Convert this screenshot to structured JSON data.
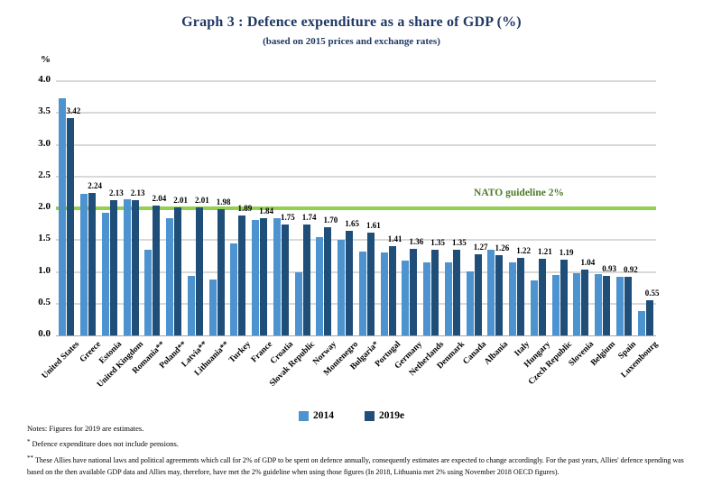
{
  "chart_data": {
    "type": "bar",
    "title": "Graph 3 : Defence expenditure as a share of GDP (%)",
    "subtitle": "(based on 2015 prices and exchange rates)",
    "ylabel": "%",
    "ylim": [
      0,
      4.0
    ],
    "yticks": [
      "4.0",
      "3.5",
      "3.0",
      "2.5",
      "2.0",
      "1.5",
      "1.0",
      "0.5",
      "0.0"
    ],
    "grid": true,
    "legend_position": "bottom",
    "categories": [
      "United States",
      "Greece",
      "Estonia",
      "United Kingdom",
      "Romania**",
      "Poland**",
      "Latvia**",
      "Lithuania**",
      "Turkey",
      "France",
      "Croatia",
      "Slovak Republic",
      "Norway",
      "Montenegro",
      "Bulgaria*",
      "Portugal",
      "Germany",
      "Netherlands",
      "Denmark",
      "Canada",
      "Albania",
      "Italy",
      "Hungary",
      "Czech Republic",
      "Slovenia",
      "Belgium",
      "Spain",
      "Luxembourg"
    ],
    "series": [
      {
        "name": "2014",
        "color": "#4D93CF",
        "data_labels": false,
        "values": [
          3.73,
          2.22,
          1.93,
          2.14,
          1.35,
          1.85,
          0.94,
          0.88,
          1.45,
          1.82,
          1.85,
          0.99,
          1.55,
          1.5,
          1.32,
          1.31,
          1.18,
          1.15,
          1.15,
          1.01,
          1.35,
          1.15,
          0.86,
          0.95,
          0.98,
          0.97,
          0.92,
          0.38
        ]
      },
      {
        "name": "2019e",
        "color": "#1F4E79",
        "data_labels": true,
        "values": [
          3.42,
          2.24,
          2.13,
          2.13,
          2.04,
          2.01,
          2.01,
          1.98,
          1.89,
          1.84,
          1.75,
          1.74,
          1.7,
          1.65,
          1.61,
          1.41,
          1.36,
          1.35,
          1.35,
          1.27,
          1.26,
          1.22,
          1.21,
          1.19,
          1.04,
          0.93,
          0.92,
          0.55
        ]
      }
    ],
    "reference_line": {
      "value": 2.0,
      "label": "NATO guideline 2%",
      "line_color": "#92D050",
      "label_color": "#4E7A27"
    }
  },
  "notes": {
    "general": "Notes: Figures for 2019 are estimates.",
    "star_marker": "*",
    "star_text": "Defence expenditure does not include pensions.",
    "doublestar_marker": "**",
    "doublestar_text": "These Allies have national laws and political agreements which call for 2% of GDP to be spent on defence annually, consequently estimates are expected to change accordingly. For the past years, Allies' defence spending was based on the then available GDP data and Allies may, therefore, have met the 2% guideline when using those figures (In 2018, Lithuania met 2% using November 2018 OECD figures)."
  },
  "colors": {
    "title": "#1F3864",
    "gridline": "#D9D9D9",
    "axis": "#A6A6A6"
  }
}
